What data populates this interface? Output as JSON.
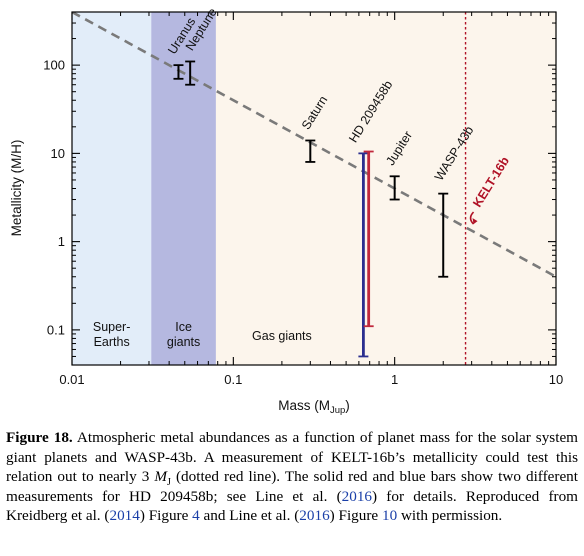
{
  "chart_data": {
    "type": "scatter",
    "x_scale": "log",
    "y_scale": "log",
    "xlim": [
      0.01,
      10
    ],
    "ylim": [
      0.04,
      400
    ],
    "xlabel": "Mass (M",
    "xlabel_sub": "Jup",
    "xlabel_end": ")",
    "ylabel": "Metallicity (M/H)",
    "x_ticks": [
      {
        "value": 0.01,
        "label": "0.01"
      },
      {
        "value": 0.1,
        "label": "0.1"
      },
      {
        "value": 1,
        "label": "1"
      },
      {
        "value": 10,
        "label": "10"
      }
    ],
    "y_ticks": [
      {
        "value": 0.1,
        "label": "0.1"
      },
      {
        "value": 1,
        "label": "1"
      },
      {
        "value": 10,
        "label": "10"
      },
      {
        "value": 100,
        "label": "100"
      }
    ],
    "regions": [
      {
        "name": "Super-Earths",
        "label_lines": [
          "Super-",
          "Earths"
        ],
        "x_from": 0.01,
        "x_to": 0.031,
        "color": "#e2edf9"
      },
      {
        "name": "Ice giants",
        "label_lines": [
          "Ice",
          "giants"
        ],
        "x_from": 0.031,
        "x_to": 0.078,
        "color": "#b5b8e0"
      },
      {
        "name": "Gas giants",
        "label_lines": [
          "Gas giants"
        ],
        "x_from": 0.078,
        "x_to": 10,
        "color": "#fcf5ec"
      }
    ],
    "trend_line": {
      "style": "dashed",
      "color": "#7a7a7a",
      "points": [
        [
          0.01,
          400
        ],
        [
          10,
          0.4
        ]
      ]
    },
    "planets": [
      {
        "name": "Uranus",
        "x": 0.0457,
        "y": 87,
        "y_low": 70,
        "y_high": 100,
        "color": "#000000"
      },
      {
        "name": "Neptune",
        "x": 0.054,
        "y": 90,
        "y_low": 60,
        "y_high": 110,
        "color": "#000000"
      },
      {
        "name": "Saturn",
        "x": 0.3,
        "y": 11,
        "y_low": 8,
        "y_high": 14,
        "color": "#000000"
      },
      {
        "name": "Jupiter",
        "x": 1.0,
        "y": 4.3,
        "y_low": 3,
        "y_high": 5.5,
        "color": "#000000"
      },
      {
        "name": "WASP-43b",
        "x": 2.0,
        "y": 1.8,
        "y_low": 0.4,
        "y_high": 3.5,
        "color": "#000000"
      }
    ],
    "hd_bars": {
      "name": "HD 209458b",
      "measurements": [
        {
          "x": 0.64,
          "y_low": 0.05,
          "y_high": 10,
          "color": "#2b2f8f"
        },
        {
          "x": 0.69,
          "y_low": 0.11,
          "y_high": 10.5,
          "color": "#c0283c"
        }
      ]
    },
    "kelt": {
      "name": "KELT-16b",
      "x": 2.75,
      "color": "#b01226",
      "style": "dotted"
    }
  },
  "caption": {
    "figure_label": "Figure 18.",
    "text_1": " Atmospheric metal abundances as a function of planet mass for the solar system giant planets and WASP-43b. A measurement of KELT-16b’s metallicity could test this relation out to nearly 3 ",
    "m_symbol": "M",
    "m_sub": "J",
    "text_2": " (dotted red line). The solid red and blue bars show two different measurements for HD 209458b; see Line et al. (",
    "ref_1": "2016",
    "text_3": ") for details. Reproduced from Kreidberg et al. (",
    "ref_2": "2014",
    "text_4": ") Figure ",
    "ref_3": "4",
    "text_5": " and Line et al. (",
    "ref_4": "2016",
    "text_6": ") Figure ",
    "ref_5": "10",
    "text_7": " with permission."
  }
}
